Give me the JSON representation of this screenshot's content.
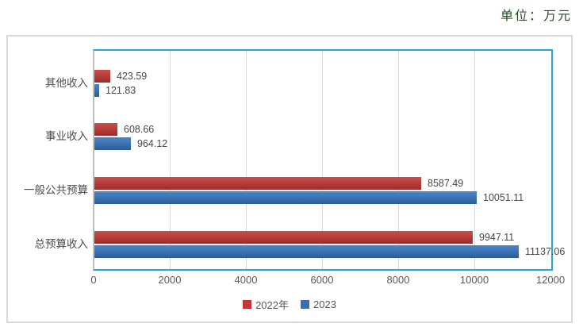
{
  "unit_label": "单位：万元",
  "colors": {
    "plot_border": "#22a6dc",
    "frame_border": "#d9d9d9",
    "axis_line": "#bfbfbf",
    "gridline": "#d9d9d9",
    "unit_text": "#1f4f1f",
    "tick_text": "#595959",
    "label_text": "#474747"
  },
  "chart_data": {
    "type": "bar",
    "orientation": "horizontal",
    "title": "",
    "xlabel": "",
    "ylabel": "",
    "unit": "万元",
    "categories": [
      "其他收入",
      "事业收入",
      "一般公共预算",
      "总预算收入"
    ],
    "series": [
      {
        "name": "2022年",
        "color": "#bd3a36",
        "gradient": [
          "#c94f4b",
          "#b23a37",
          "#992e2c"
        ],
        "values": [
          423.59,
          608.66,
          8587.49,
          9947.11
        ]
      },
      {
        "name": "2023",
        "color": "#3b6fb3",
        "gradient": [
          "#4a85c9",
          "#3a70b1",
          "#2c5c95"
        ],
        "values": [
          121.83,
          964.12,
          10051.11,
          11137.06
        ]
      }
    ],
    "data_labels": [
      [
        "423.59",
        "608.66",
        "8587.49",
        "9947.11"
      ],
      [
        "121.83",
        "964.12",
        "10051.11",
        "11137.06"
      ]
    ],
    "xlim": [
      0,
      12000
    ],
    "x_ticks": [
      0,
      2000,
      4000,
      6000,
      8000,
      10000,
      12000
    ],
    "grid": true,
    "legend_position": "bottom"
  }
}
